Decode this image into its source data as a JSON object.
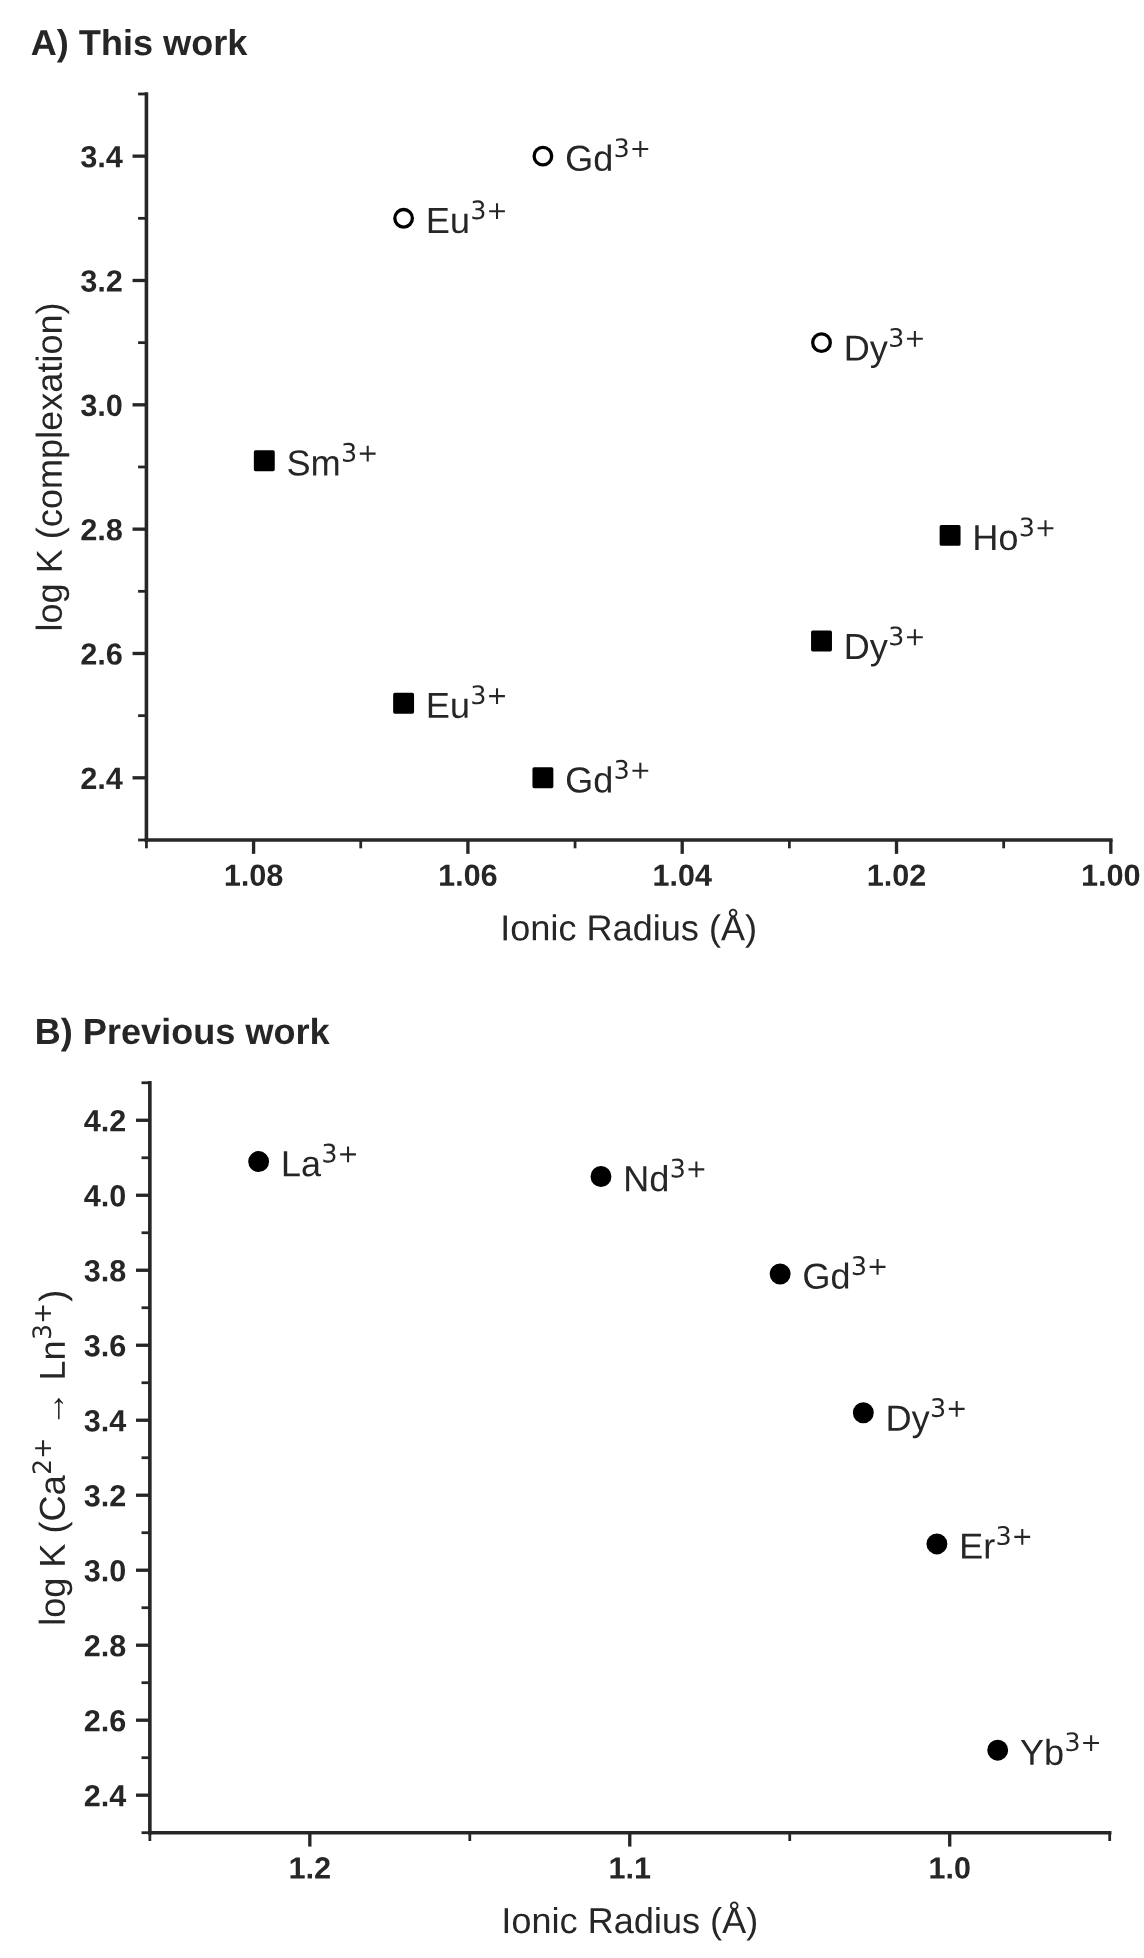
{
  "chart_data": [
    {
      "type": "scatter",
      "title": "A) This work",
      "xlabel": "Ionic Radius (Å)",
      "ylabel": "log K (complexation)",
      "xlim": [
        1.09,
        1.0
      ],
      "xticks": [
        {
          "value": 1.08,
          "label": "1.08"
        },
        {
          "value": 1.06,
          "label": "1.06"
        },
        {
          "value": 1.04,
          "label": "1.04"
        },
        {
          "value": 1.02,
          "label": "1.02"
        },
        {
          "value": 1.0,
          "label": "1.00"
        }
      ],
      "ylim": [
        2.3,
        3.5
      ],
      "yticks": [
        {
          "value": 2.4,
          "label": "2.4"
        },
        {
          "value": 2.6,
          "label": "2.6"
        },
        {
          "value": 2.8,
          "label": "2.8"
        },
        {
          "value": 3.0,
          "label": "3.0"
        },
        {
          "value": 3.2,
          "label": "3.2"
        },
        {
          "value": 3.4,
          "label": "3.4"
        }
      ],
      "series": [
        {
          "color": "#ffffff",
          "marker": "circle",
          "x": [
            1.066,
            1.053,
            1.027
          ],
          "values": [
            3.3,
            3.4,
            3.1
          ]
        },
        {
          "color": "#000000",
          "marker": "square",
          "x": [
            1.079,
            1.066,
            1.053,
            1.027,
            1.015
          ],
          "values": [
            2.91,
            2.52,
            2.4,
            2.62,
            2.79
          ]
        }
      ],
      "annotations": [
        {
          "text": "Eu$^{3+}$",
          "x": 1.066,
          "y": 3.3
        },
        {
          "text": "Gd$^{3+}$",
          "x": 1.053,
          "y": 3.4
        },
        {
          "text": "Dy$^{3+}$",
          "x": 1.027,
          "y": 3.1
        },
        {
          "text": "Sm$^{3+}$",
          "x": 1.079,
          "y": 2.91
        },
        {
          "text": "Eu$^{3+}$",
          "x": 1.066,
          "y": 2.52
        },
        {
          "text": "Gd$^{3+}$",
          "x": 1.053,
          "y": 2.4
        },
        {
          "text": "Dy$^{3+}$",
          "x": 1.027,
          "y": 2.62
        },
        {
          "text": "Ho$^{3+}$",
          "x": 1.015,
          "y": 2.79
        }
      ],
      "grid": false,
      "legend": false
    },
    {
      "type": "scatter",
      "title": "B) Previous work",
      "xlabel": "Ionic Radius (Å)",
      "ylabel": "log K (Ca$^{2+}$ → Ln$^{3+}$)",
      "xlim": [
        1.25,
        0.95
      ],
      "xticks": [
        1.2,
        1.1,
        {
          "value": 1.0,
          "label": "1.0"
        }
      ],
      "ylim": [
        2.3,
        4.3
      ],
      "yticks": [
        2.4,
        2.6,
        2.8,
        {
          "value": 3.0,
          "label": "3.0"
        },
        3.2,
        3.4,
        3.6,
        3.8,
        {
          "value": 4.0,
          "label": "4.0"
        },
        4.2
      ],
      "series": [
        {
          "color": "#000000",
          "marker": "circle",
          "x": [
            1.216,
            1.109,
            1.053,
            1.027,
            1.004,
            0.985
          ],
          "values": [
            4.09,
            4.05,
            3.79,
            3.42,
            3.07,
            2.52
          ]
        }
      ],
      "annotations": [
        {
          "text": "La$^{3+}$",
          "x": 1.216,
          "y": 4.09
        },
        {
          "text": "Nd$^{3+}$",
          "x": 1.109,
          "y": 4.05
        },
        {
          "text": "Gd$^{3+}$",
          "x": 1.053,
          "y": 3.79
        },
        {
          "text": "Dy$^{3+}$",
          "x": 1.027,
          "y": 3.42
        },
        {
          "text": "Er$^{3+}$",
          "x": 1.004,
          "y": 3.07
        },
        {
          "text": "Yb$^{3+}$",
          "x": 0.985,
          "y": 2.52
        }
      ],
      "grid": false,
      "legend": false
    }
  ]
}
